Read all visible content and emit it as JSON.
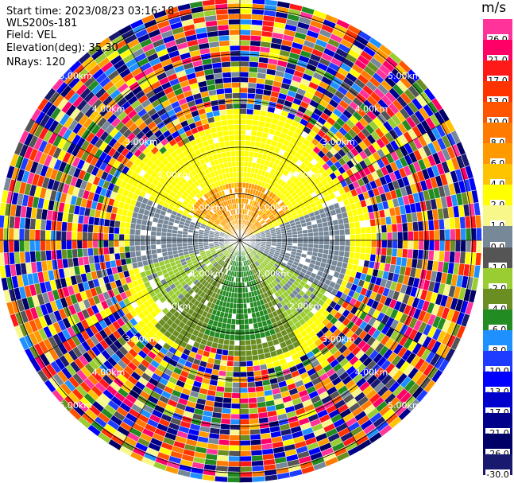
{
  "header": {
    "start_time": "Start time: 2023/08/23 03:16:18",
    "instrument": "WLS200s-181",
    "field": "Field: VEL",
    "elevation": "Elevation(deg): 35.30",
    "nrays": "NRays: 120"
  },
  "colorbar": {
    "unit": "m/s",
    "ticks": [
      "26.0",
      "21.0",
      "17.0",
      "13.0",
      "10.0",
      "8.0",
      "6.0",
      "4.0",
      "2.0",
      "1.0",
      "0.0",
      "-1.0",
      "-2.0",
      "-4.0",
      "-6.0",
      "-8.0",
      "-10.0",
      "-13.0",
      "-17.0",
      "-21.0",
      "-26.0",
      "-30.0"
    ],
    "colors": [
      "#ff3399",
      "#ff0066",
      "#ff1a1a",
      "#ff3300",
      "#ff5500",
      "#ff7a00",
      "#ff9900",
      "#ffc400",
      "#ffff00",
      "#f7f78a",
      "#778899",
      "#555555",
      "#9acd32",
      "#6b8e23",
      "#228b22",
      "#1e90ff",
      "#1e3cff",
      "#0000ff",
      "#0000cd",
      "#00008b",
      "#000066",
      "#191970"
    ]
  },
  "chart_data": {
    "type": "ppi-polar",
    "title": "",
    "field": "VEL",
    "unit": "m/s",
    "n_rays": 120,
    "elevation_deg": 35.3,
    "max_range_km": 5.0,
    "range_ring_labels": [
      "1.00km",
      "2.00km",
      "3.00km",
      "4.00km",
      "5.00km"
    ],
    "range_ring_label_values_km": [
      1.0,
      2.0,
      3.0,
      4.0,
      5.0
    ],
    "noise_beyond_km": 2.65,
    "regions": [
      {
        "name": "core-positive",
        "color": "#ff9900",
        "value": 6.0,
        "range_km": [
          0,
          1.2
        ],
        "azimuth_deg": [
          300,
          60
        ]
      },
      {
        "name": "positive",
        "color": "#ffff00",
        "value": 2.0,
        "range_km": [
          0,
          2.5
        ],
        "azimuth_deg": [
          295,
          70
        ]
      },
      {
        "name": "near-zero",
        "color": "#778899",
        "value": 0.0,
        "range_km": [
          0,
          2.4
        ],
        "azimuth_deg": [
          70,
          120
        ]
      },
      {
        "name": "near-zero-west",
        "color": "#778899",
        "value": 0.0,
        "range_km": [
          0,
          2.4
        ],
        "azimuth_deg": [
          255,
          295
        ]
      },
      {
        "name": "slight-negative",
        "color": "#9acd32",
        "value": -2.0,
        "range_km": [
          0,
          2.3
        ],
        "azimuth_deg": [
          120,
          255
        ]
      },
      {
        "name": "negative",
        "color": "#6b8e23",
        "value": -4.0,
        "range_km": [
          0.4,
          2.6
        ],
        "azimuth_deg": [
          150,
          225
        ]
      },
      {
        "name": "core-negative",
        "color": "#228b22",
        "value": -6.0,
        "range_km": [
          0,
          2.2
        ],
        "azimuth_deg": [
          160,
          200
        ]
      }
    ]
  }
}
